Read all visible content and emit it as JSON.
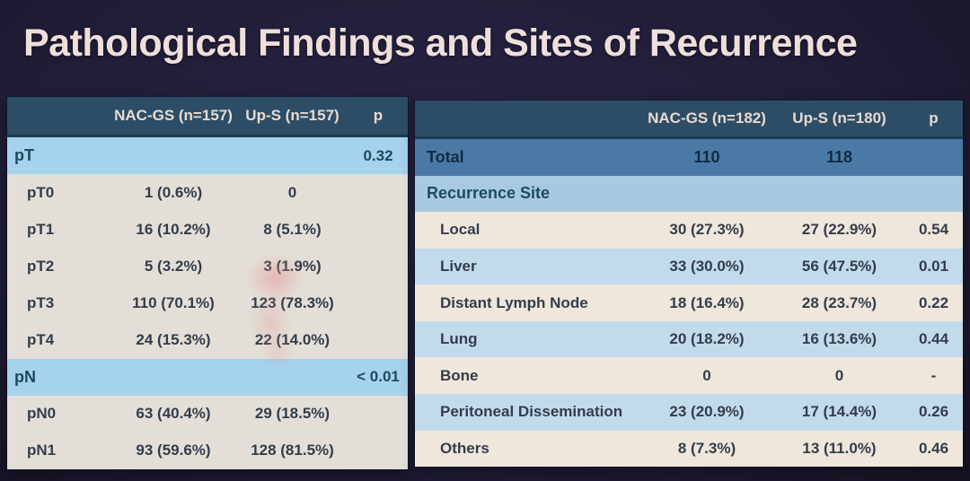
{
  "title": "Pathological Findings and Sites of Recurrence",
  "accent_colors": {
    "background": "#201d37",
    "header_bg": "#2d4d67",
    "section_blue": "#a5d2ec",
    "total_blue": "#4a79a5",
    "row_white": "#efe6dc",
    "row_blue": "#c2dbec",
    "title_text": "#eedfda"
  },
  "left_table": {
    "header": {
      "col1": "NAC-GS  (n=157)",
      "col2": "Up-S (n=157)",
      "p": "p"
    },
    "rows": [
      {
        "label": "pT",
        "c1": "",
        "c2": "",
        "p": "0.32"
      },
      {
        "label": "pT0",
        "c1": "1 (0.6%)",
        "c2": "0",
        "p": ""
      },
      {
        "label": "pT1",
        "c1": "16 (10.2%)",
        "c2": "8 (5.1%)",
        "p": ""
      },
      {
        "label": "pT2",
        "c1": "5 (3.2%)",
        "c2": "3 (1.9%)",
        "p": ""
      },
      {
        "label": "pT3",
        "c1": "110 (70.1%)",
        "c2": "123 (78.3%)",
        "p": ""
      },
      {
        "label": "pT4",
        "c1": "24 (15.3%)",
        "c2": "22 (14.0%)",
        "p": ""
      },
      {
        "label": "pN",
        "c1": "",
        "c2": "",
        "p": "< 0.01"
      },
      {
        "label": "pN0",
        "c1": "63 (40.4%)",
        "c2": "29 (18.5%)",
        "p": ""
      },
      {
        "label": "pN1",
        "c1": "93 (59.6%)",
        "c2": "128 (81.5%)",
        "p": ""
      }
    ]
  },
  "right_table": {
    "header": {
      "col1": "NAC-GS  (n=182)",
      "col2": "Up-S (n=180)",
      "p": "p"
    },
    "rows": [
      {
        "label": "Total",
        "c1": "110",
        "c2": "118",
        "p": ""
      },
      {
        "label": "Recurrence Site",
        "c1": "",
        "c2": "",
        "p": ""
      },
      {
        "label": "Local",
        "c1": "30 (27.3%)",
        "c2": "27 (22.9%)",
        "p": "0.54"
      },
      {
        "label": "Liver",
        "c1": "33 (30.0%)",
        "c2": "56 (47.5%)",
        "p": "0.01"
      },
      {
        "label": "Distant Lymph Node",
        "c1": "18 (16.4%)",
        "c2": "28 (23.7%)",
        "p": "0.22"
      },
      {
        "label": "Lung",
        "c1": "20 (18.2%)",
        "c2": "16 (13.6%)",
        "p": "0.44"
      },
      {
        "label": "Bone",
        "c1": "0",
        "c2": "0",
        "p": "-"
      },
      {
        "label": "Peritoneal Dissemination",
        "c1": "23 (20.9%)",
        "c2": "17 (14.4%)",
        "p": "0.26"
      },
      {
        "label": "Others",
        "c1": "8 (7.3%)",
        "c2": "13 (11.0%)",
        "p": "0.46"
      }
    ]
  }
}
